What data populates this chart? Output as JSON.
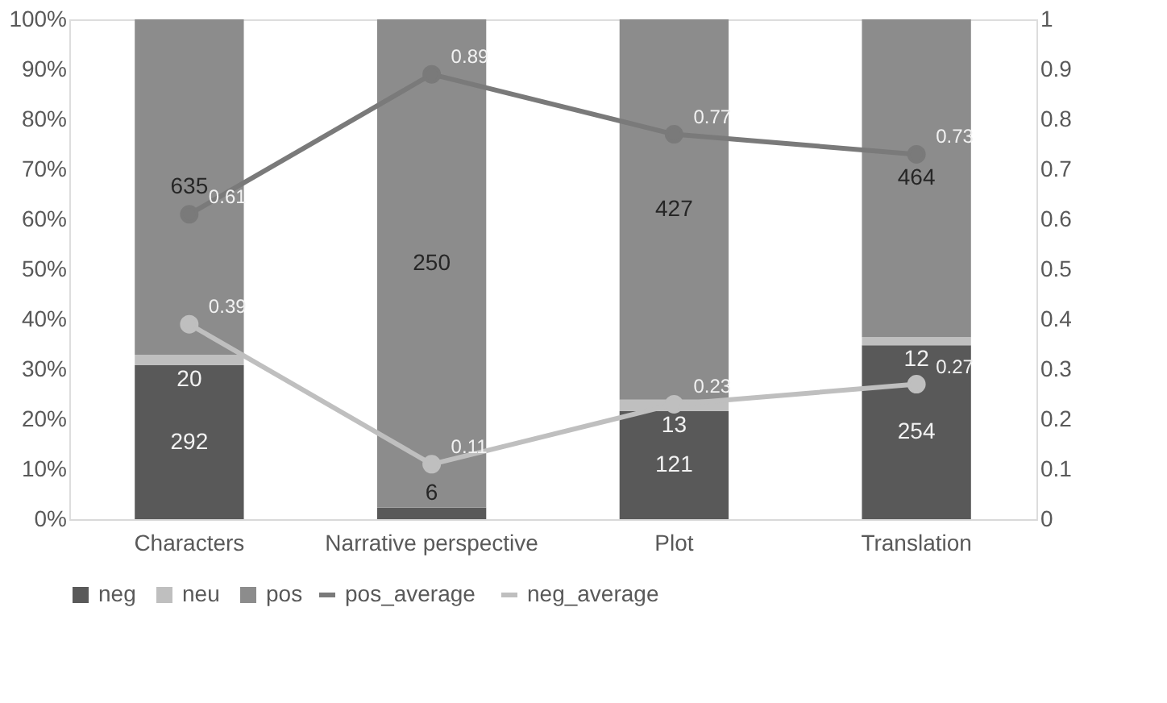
{
  "chart_data": {
    "type": "bar",
    "stacked": true,
    "categories": [
      "Characters",
      "Narrative perspective",
      "Plot",
      "Translation"
    ],
    "series": [
      {
        "name": "neg",
        "color": "#595959",
        "values": [
          30.8,
          2.3,
          21.6,
          34.8
        ]
      },
      {
        "name": "neu",
        "color": "#bfbfbf",
        "values": [
          2.1,
          null,
          2.3,
          1.6
        ]
      },
      {
        "name": "pos",
        "color": "#8c8c8c",
        "values": [
          67.1,
          97.7,
          76.1,
          63.6
        ]
      },
      {
        "name": "pos_average",
        "type": "line",
        "axis": "y2",
        "color": "#7a7a7a",
        "values": [
          0.61,
          0.89,
          0.77,
          0.73
        ],
        "value_labels": [
          "0.61",
          "0.89",
          "0.77",
          "0.73"
        ]
      },
      {
        "name": "neg_average",
        "type": "line",
        "axis": "y2",
        "color": "#bfbfbf",
        "values": [
          0.39,
          0.11,
          0.23,
          0.27
        ],
        "value_labels": [
          "0.39",
          "0.11",
          "0.23",
          "0.27"
        ]
      }
    ],
    "annotations": [
      "292",
      "20",
      "635",
      "6",
      "250",
      "121",
      "13",
      "427",
      "254",
      "12",
      "464"
    ],
    "ylim": [
      0,
      100
    ],
    "yticks": [
      {
        "value": 0,
        "label": "0%"
      },
      {
        "value": 10,
        "label": "10%"
      },
      {
        "value": 20,
        "label": "20%"
      },
      {
        "value": 30,
        "label": "30%"
      },
      {
        "value": 40,
        "label": "40%"
      },
      {
        "value": 50,
        "label": "50%"
      },
      {
        "value": 60,
        "label": "60%"
      },
      {
        "value": 70,
        "label": "70%"
      },
      {
        "value": 80,
        "label": "80%"
      },
      {
        "value": 90,
        "label": "90%"
      },
      {
        "value": 100,
        "label": "100%"
      }
    ],
    "y2lim": [
      0,
      1
    ],
    "y2ticks": [
      0,
      0.1,
      0.2,
      0.3,
      0.4,
      0.5,
      0.6,
      0.7,
      0.8,
      0.9,
      1
    ],
    "marker": "circle",
    "line_style": "solid",
    "legend": "bottom"
  }
}
